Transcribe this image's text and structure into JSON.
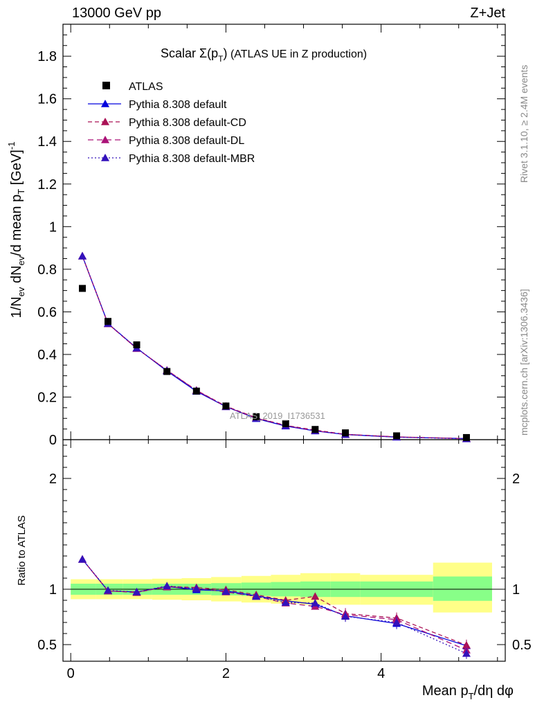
{
  "header": {
    "left": "13000 GeV pp",
    "right": "Z+Jet"
  },
  "title": {
    "prefix": "Scalar ",
    "sigma": "Σ(p",
    "sub": "T",
    "suffix": ")",
    "rest": " (ATLAS UE in Z production)"
  },
  "sidebar": {
    "rivet": "Rivet 3.1.10, ≥ 2.4M events",
    "mcplots": "mcplots.cern.ch [arXiv:1306.3436]"
  },
  "watermark": "ATLAS_2019_I1736531",
  "colors": {
    "data": "#000000",
    "default": "#0000dd",
    "cd": "#aa1155",
    "dl": "#aa1177",
    "mbr": "#3311bb",
    "band_outer": "#ffff88",
    "band_inner": "#88ff88"
  },
  "chart_data": {
    "type": "line",
    "x": [
      0.15,
      0.48,
      0.85,
      1.24,
      1.62,
      2.0,
      2.39,
      2.77,
      3.15,
      3.54,
      4.2,
      5.1
    ],
    "top": {
      "ylabel": "1/N_ev dN_ev/d mean p_T [GeV]^-1",
      "ylim": [
        0,
        1.95
      ],
      "xlim": [
        -0.1,
        5.6
      ],
      "yticks": [
        0,
        0.2,
        0.4,
        0.6,
        0.8,
        1,
        1.2,
        1.4,
        1.6,
        1.8
      ],
      "ytick_labels": [
        "0",
        "0.2",
        "0.4",
        "0.6",
        "0.8",
        "1",
        "1.2",
        "1.4",
        "1.6",
        "1.8"
      ],
      "series": [
        {
          "name": "ATLAS",
          "values": [
            0.71,
            0.555,
            0.445,
            0.32,
            0.228,
            0.158,
            0.108,
            0.075,
            0.048,
            0.032,
            0.018,
            0.01
          ]
        },
        {
          "name": "Pythia 8.308 default",
          "values": [
            0.862,
            0.545,
            0.43,
            0.322,
            0.227,
            0.155,
            0.099,
            0.064,
            0.041,
            0.024,
            0.012,
            0.005
          ]
        },
        {
          "name": "Pythia 8.308 default-CD",
          "values": [
            0.862,
            0.544,
            0.428,
            0.326,
            0.232,
            0.157,
            0.103,
            0.067,
            0.045,
            0.025,
            0.013,
            0.005
          ]
        },
        {
          "name": "Pythia 8.308 default-DL",
          "values": [
            0.862,
            0.544,
            0.428,
            0.326,
            0.231,
            0.155,
            0.101,
            0.066,
            0.042,
            0.025,
            0.013,
            0.005
          ]
        },
        {
          "name": "Pythia 8.308 default-MBR",
          "values": [
            0.862,
            0.545,
            0.43,
            0.324,
            0.229,
            0.155,
            0.1,
            0.065,
            0.041,
            0.024,
            0.012,
            0.004
          ]
        }
      ]
    },
    "ratio": {
      "ylabel": "Ratio to ATLAS",
      "ylim": [
        0.35,
        2.35
      ],
      "yticks": [
        0.5,
        1,
        2
      ],
      "ytick_labels": [
        "0.5",
        "1",
        "2"
      ],
      "series": [
        {
          "name": "Pythia 8.308 default",
          "values": [
            1.27,
            0.985,
            0.975,
            1.025,
            0.995,
            0.985,
            0.94,
            0.895,
            0.865,
            0.76,
            0.69,
            0.49
          ]
        },
        {
          "name": "Pythia 8.308 default-CD",
          "values": [
            1.27,
            0.985,
            0.97,
            1.025,
            1.015,
            0.995,
            0.95,
            0.9,
            0.935,
            0.78,
            0.74,
            0.495
          ]
        },
        {
          "name": "Pythia 8.308 default-DL",
          "values": [
            1.27,
            0.985,
            0.975,
            1.02,
            1.01,
            0.975,
            0.935,
            0.875,
            0.845,
            0.77,
            0.725,
            0.45
          ]
        },
        {
          "name": "Pythia 8.308 default-MBR",
          "values": [
            1.27,
            0.99,
            0.975,
            1.03,
            1.005,
            0.98,
            0.935,
            0.88,
            0.875,
            0.755,
            0.7,
            0.42
          ]
        }
      ],
      "bands": [
        {
          "x0": 0.0,
          "x1": 0.32,
          "inner": [
            0.95,
            1.05
          ],
          "outer": [
            0.91,
            1.09
          ]
        },
        {
          "x0": 0.32,
          "x1": 0.67,
          "inner": [
            0.95,
            1.05
          ],
          "outer": [
            0.91,
            1.09
          ]
        },
        {
          "x0": 0.67,
          "x1": 1.05,
          "inner": [
            0.95,
            1.05
          ],
          "outer": [
            0.91,
            1.09
          ]
        },
        {
          "x0": 1.05,
          "x1": 1.43,
          "inner": [
            0.95,
            1.05
          ],
          "outer": [
            0.905,
            1.095
          ]
        },
        {
          "x0": 1.43,
          "x1": 1.81,
          "inner": [
            0.95,
            1.05
          ],
          "outer": [
            0.9,
            1.1
          ]
        },
        {
          "x0": 1.81,
          "x1": 2.2,
          "inner": [
            0.945,
            1.055
          ],
          "outer": [
            0.89,
            1.11
          ]
        },
        {
          "x0": 2.2,
          "x1": 2.58,
          "inner": [
            0.94,
            1.06
          ],
          "outer": [
            0.88,
            1.12
          ]
        },
        {
          "x0": 2.58,
          "x1": 2.96,
          "inner": [
            0.935,
            1.065
          ],
          "outer": [
            0.87,
            1.13
          ]
        },
        {
          "x0": 2.96,
          "x1": 3.35,
          "inner": [
            0.93,
            1.07
          ],
          "outer": [
            0.86,
            1.145
          ]
        },
        {
          "x0": 3.35,
          "x1": 3.73,
          "inner": [
            0.93,
            1.07
          ],
          "outer": [
            0.86,
            1.145
          ]
        },
        {
          "x0": 3.73,
          "x1": 4.67,
          "inner": [
            0.93,
            1.07
          ],
          "outer": [
            0.86,
            1.13
          ]
        },
        {
          "x0": 4.67,
          "x1": 5.43,
          "inner": [
            0.895,
            1.115
          ],
          "outer": [
            0.79,
            1.24
          ]
        }
      ],
      "ref_line": 1
    },
    "xlabel": "Mean p_T/dη dφ",
    "xticks": [
      0,
      2,
      4
    ],
    "xtick_labels": [
      "0",
      "2",
      "4"
    ],
    "legend": {
      "placement": "top-left",
      "entries": [
        {
          "label": "ATLAS",
          "style": "data"
        },
        {
          "label": "Pythia 8.308 default",
          "style": "default"
        },
        {
          "label": "Pythia 8.308 default-CD",
          "style": "cd"
        },
        {
          "label": "Pythia 8.308 default-DL",
          "style": "dl"
        },
        {
          "label": "Pythia 8.308 default-MBR",
          "style": "mbr"
        }
      ]
    }
  }
}
